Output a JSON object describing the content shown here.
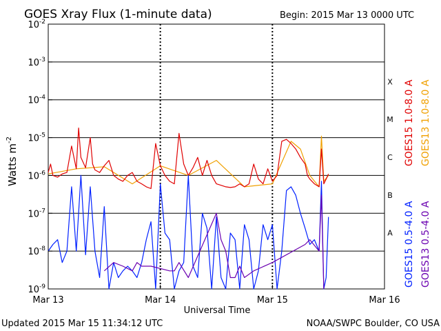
{
  "chart_data": {
    "type": "line",
    "title": "GOES Xray Flux (1-minute data)",
    "begin_label": "Begin:  2015 Mar 13 0000 UTC",
    "xlabel": "Universal Time",
    "ylabel": "Watts m",
    "ylabel_exponent": "-2",
    "y_scale": "log",
    "ylim": [
      1e-09,
      0.01
    ],
    "y_ticks": [
      {
        "base": "10",
        "exp": "-9",
        "value": 1e-09
      },
      {
        "base": "10",
        "exp": "-8",
        "value": 1e-08
      },
      {
        "base": "10",
        "exp": "-7",
        "value": 1e-07
      },
      {
        "base": "10",
        "exp": "-6",
        "value": 1e-06
      },
      {
        "base": "10",
        "exp": "-5",
        "value": 1e-05
      },
      {
        "base": "10",
        "exp": "-4",
        "value": 0.0001
      },
      {
        "base": "10",
        "exp": "-3",
        "value": 0.001
      },
      {
        "base": "10",
        "exp": "-2",
        "value": 0.01
      }
    ],
    "x_unit": "hours since 2015 Mar 13 0000 UTC",
    "xlim": [
      0,
      72
    ],
    "x_ticks": [
      {
        "label": "Mar 13",
        "value": 0
      },
      {
        "label": "Mar 14",
        "value": 24
      },
      {
        "label": "Mar 15",
        "value": 48
      },
      {
        "label": "Mar 16",
        "value": 72
      }
    ],
    "flare_classes": [
      {
        "label": "A",
        "value": 1e-08
      },
      {
        "label": "B",
        "value": 1e-07
      },
      {
        "label": "C",
        "value": 1e-06
      },
      {
        "label": "M",
        "value": 1e-05
      },
      {
        "label": "X",
        "value": 0.0001
      }
    ],
    "grid": "horizontal lines at each decade; vertical dotted lines at day boundaries",
    "legend_position": "right, vertical",
    "series": [
      {
        "name": "GOES15 1.0-8.0 A",
        "color": "#e00000",
        "x": [
          0,
          0.5,
          1,
          2,
          3,
          4,
          5,
          6,
          6.5,
          7,
          8,
          9,
          9.5,
          10,
          11,
          12,
          13,
          14,
          15,
          16,
          17,
          18,
          19,
          20,
          21,
          22,
          23,
          24,
          25,
          26,
          27,
          28,
          29,
          30,
          31,
          32,
          33,
          34,
          35,
          36,
          37,
          38,
          39,
          40,
          41,
          42,
          43,
          44,
          45,
          46,
          47,
          48,
          49,
          50,
          51,
          52,
          53,
          54,
          55,
          55.5,
          56,
          57,
          58,
          58.5,
          59,
          59.5,
          60
        ],
        "values": [
          1.2e-06,
          2e-06,
          1e-06,
          9e-07,
          1.1e-06,
          1.2e-06,
          6e-06,
          1.5e-06,
          1.8e-05,
          3e-06,
          1.6e-06,
          1e-05,
          2e-06,
          1.4e-06,
          1.2e-06,
          1.8e-06,
          2.5e-06,
          1e-06,
          8e-07,
          7e-07,
          1e-06,
          1.2e-06,
          7e-07,
          6e-07,
          5e-07,
          4.5e-07,
          7e-06,
          1.8e-06,
          1e-06,
          7e-07,
          6e-07,
          1.3e-05,
          2e-06,
          1e-06,
          1.6e-06,
          3e-06,
          1e-06,
          2.5e-06,
          1e-06,
          6e-07,
          5.5e-07,
          5e-07,
          4.8e-07,
          5e-07,
          6e-07,
          5e-07,
          6e-07,
          2e-06,
          8e-07,
          6e-07,
          1.5e-06,
          7e-07,
          1e-06,
          8e-06,
          9e-06,
          7e-06,
          5e-06,
          3e-06,
          2e-06,
          1e-06,
          8e-07,
          6e-07,
          5e-07,
          5e-06,
          6e-07,
          8e-07,
          1.1e-06
        ]
      },
      {
        "name": "GOES13 1.0-8.0 A",
        "color": "#f0a000",
        "x": [
          0,
          6,
          12,
          18,
          24,
          30,
          36,
          42,
          48,
          52,
          54,
          56,
          58,
          58.5,
          59,
          60
        ],
        "values": [
          1.1e-06,
          1.5e-06,
          1.7e-06,
          6e-07,
          1.8e-06,
          1e-06,
          2.5e-06,
          5e-07,
          6e-07,
          8e-06,
          5e-06,
          1e-06,
          5e-07,
          1.1e-05,
          7e-07,
          1e-06
        ]
      },
      {
        "name": "GOES15 0.5-4.0 A",
        "color": "#0020ff",
        "x": [
          0,
          1,
          2,
          3,
          4,
          5,
          6,
          7,
          8,
          9,
          10,
          11,
          12,
          13,
          14,
          15,
          16,
          17,
          18,
          19,
          20,
          21,
          22,
          23,
          24,
          25,
          26,
          27,
          28,
          29,
          30,
          31,
          32,
          33,
          34,
          35,
          36,
          37,
          38,
          39,
          40,
          41,
          42,
          43,
          44,
          45,
          46,
          47,
          48,
          49,
          50,
          51,
          52,
          53,
          54,
          55,
          56,
          57,
          58,
          58.5,
          59,
          59.5,
          60
        ],
        "values": [
          1e-08,
          1.5e-08,
          2e-08,
          5e-09,
          1e-08,
          5e-07,
          1e-08,
          1e-06,
          8e-09,
          5e-07,
          1e-08,
          2e-09,
          1.5e-07,
          1e-09,
          5e-09,
          2e-09,
          3e-09,
          4e-09,
          3e-09,
          2e-09,
          5e-09,
          2e-08,
          6e-08,
          1e-09,
          6e-07,
          3e-08,
          2e-08,
          1e-09,
          3e-09,
          5e-09,
          1e-06,
          4e-09,
          2e-09,
          1e-07,
          4e-08,
          1e-09,
          8e-08,
          2e-09,
          1e-09,
          3e-08,
          2e-08,
          1e-09,
          5e-08,
          2e-08,
          1e-09,
          3e-09,
          5e-08,
          2e-08,
          5e-08,
          1e-09,
          1e-08,
          4e-07,
          5e-07,
          3e-07,
          1e-07,
          4e-08,
          1.5e-08,
          2e-08,
          1e-08,
          7e-07,
          1e-09,
          2e-09,
          8e-08
        ]
      },
      {
        "name": "GOES13 0.5-4.0 A",
        "color": "#6a00b0",
        "x": [
          12,
          14,
          16,
          18,
          19,
          20,
          22,
          26,
          27,
          28,
          30,
          36,
          37,
          38,
          39,
          40,
          41,
          42,
          44,
          48,
          55,
          56,
          58,
          58.5,
          59
        ],
        "values": [
          3e-09,
          5e-09,
          4e-09,
          3e-09,
          5e-09,
          4e-09,
          4e-09,
          3e-09,
          3e-09,
          5e-09,
          2e-09,
          1e-07,
          2e-08,
          1e-08,
          2e-09,
          2e-09,
          4e-09,
          2e-09,
          3e-09,
          5e-09,
          1.5e-08,
          2e-08,
          1e-08,
          3e-07,
          1e-09
        ]
      }
    ]
  },
  "footer": {
    "updated": "Updated 2015 Mar 15 11:34:12 UTC",
    "credit": "NOAA/SWPC Boulder, CO USA"
  }
}
